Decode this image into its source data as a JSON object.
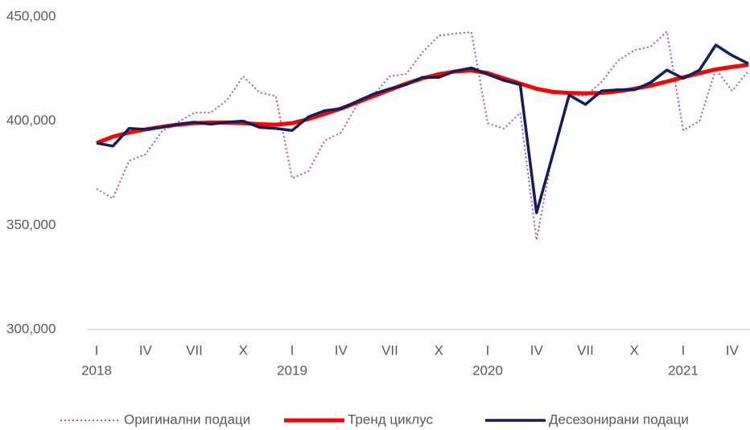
{
  "chart_data": {
    "type": "line",
    "categories": [
      "I",
      null,
      null,
      "IV",
      null,
      null,
      "VII",
      null,
      null,
      "X",
      null,
      null,
      "I",
      null,
      null,
      "IV",
      null,
      null,
      "VII",
      null,
      null,
      "X",
      null,
      null,
      "I",
      null,
      null,
      "IV",
      null,
      null,
      "VII",
      null,
      null,
      "X",
      null,
      null,
      "I",
      null,
      null,
      "IV",
      null
    ],
    "years": [
      "2018",
      "2019",
      "2020",
      "2021"
    ],
    "series": [
      {
        "name": "Оригинални подаци",
        "color": "#a355b5",
        "style": "dotted",
        "values": [
          367500,
          362900,
          381000,
          384000,
          395000,
          399500,
          404000,
          404000,
          410000,
          421500,
          413700,
          412000,
          372500,
          376000,
          390600,
          394500,
          408000,
          412600,
          421500,
          422600,
          433000,
          441000,
          442000,
          442700,
          399000,
          396400,
          404000,
          343000,
          385000,
          412600,
          412000,
          418800,
          429000,
          434000,
          435700,
          443000,
          395600,
          400000,
          425000,
          414500,
          424000
        ]
      },
      {
        "name": "Тренд циклус",
        "color": "#ff0000",
        "style": "thick",
        "values": [
          389500,
          392500,
          394500,
          396000,
          397300,
          398300,
          399000,
          399300,
          399300,
          399000,
          398500,
          398300,
          399000,
          401000,
          403500,
          406000,
          409000,
          412000,
          415000,
          418000,
          420500,
          422500,
          423800,
          424300,
          423000,
          420500,
          418000,
          415500,
          414000,
          413500,
          413300,
          413500,
          414300,
          415500,
          417000,
          419000,
          421000,
          423000,
          424800,
          426000,
          427000
        ]
      },
      {
        "name": "Десезонирани подаци",
        "color": "#0d1f5c",
        "style": "solid",
        "values": [
          389500,
          388000,
          396500,
          396000,
          397000,
          398500,
          399500,
          398500,
          399500,
          400000,
          397000,
          396500,
          395500,
          402000,
          405000,
          406000,
          409500,
          413000,
          415500,
          417500,
          421000,
          421000,
          424000,
          425500,
          422500,
          419500,
          417500,
          356000,
          384000,
          412500,
          408000,
          414500,
          415000,
          415000,
          418500,
          424500,
          420500,
          424500,
          436500,
          431500,
          427500
        ]
      }
    ],
    "ylim": [
      300000,
      450000
    ],
    "yticks": [
      {
        "value": 300000,
        "label": "300,000"
      },
      {
        "value": 350000,
        "label": "350,000"
      },
      {
        "value": 400000,
        "label": "400,000"
      },
      {
        "value": 450000,
        "label": "450,000"
      }
    ],
    "grid": false,
    "legend": "bottom"
  }
}
